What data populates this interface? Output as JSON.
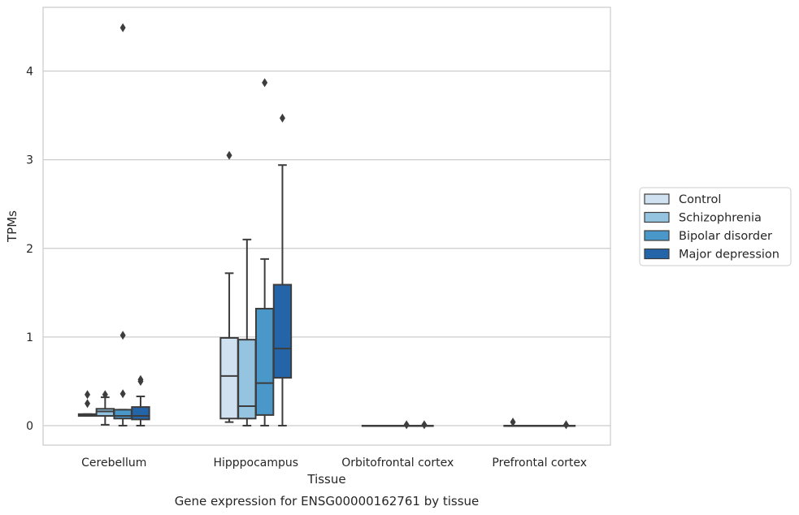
{
  "caption": "Gene expression for ENSG00000162761 by tissue",
  "chart_data": {
    "type": "box",
    "xlabel": "Tissue",
    "ylabel": "TPMs",
    "ylim": [
      -0.22,
      4.72
    ],
    "yticks": [
      0,
      1,
      2,
      3,
      4
    ],
    "grid": "horizontal",
    "legend_position": "right",
    "categories": [
      "Cerebellum",
      "Hipppocampus",
      "Orbitofrontal cortex",
      "Prefrontal cortex"
    ],
    "series": [
      {
        "name": "Control",
        "color": "#d0e1f2",
        "boxes": [
          {
            "category": "Cerebellum",
            "whisker_low": 0.11,
            "q1": 0.11,
            "median": 0.12,
            "q3": 0.13,
            "whisker_high": 0.13,
            "outliers": [
              0.25,
              0.35
            ]
          },
          {
            "category": "Hipppocampus",
            "whisker_low": 0.04,
            "q1": 0.08,
            "median": 0.56,
            "q3": 0.99,
            "whisker_high": 1.72,
            "outliers": [
              3.05
            ]
          },
          {
            "category": "Orbitofrontal cortex",
            "whisker_low": 0.0,
            "q1": 0.0,
            "median": 0.0,
            "q3": 0.0,
            "whisker_high": 0.0,
            "outliers": []
          },
          {
            "category": "Prefrontal cortex",
            "whisker_low": 0.0,
            "q1": 0.0,
            "median": 0.0,
            "q3": 0.0,
            "whisker_high": 0.0,
            "outliers": [
              0.04
            ]
          }
        ]
      },
      {
        "name": "Schizophrenia",
        "color": "#94c4df",
        "boxes": [
          {
            "category": "Cerebellum",
            "whisker_low": 0.01,
            "q1": 0.11,
            "median": 0.16,
            "q3": 0.19,
            "whisker_high": 0.32,
            "outliers": [
              0.35
            ]
          },
          {
            "category": "Hipppocampus",
            "whisker_low": 0.0,
            "q1": 0.08,
            "median": 0.22,
            "q3": 0.97,
            "whisker_high": 2.1,
            "outliers": []
          },
          {
            "category": "Orbitofrontal cortex",
            "whisker_low": 0.0,
            "q1": 0.0,
            "median": 0.0,
            "q3": 0.0,
            "whisker_high": 0.0,
            "outliers": []
          },
          {
            "category": "Prefrontal cortex",
            "whisker_low": 0.0,
            "q1": 0.0,
            "median": 0.0,
            "q3": 0.0,
            "whisker_high": 0.0,
            "outliers": []
          }
        ]
      },
      {
        "name": "Bipolar disorder",
        "color": "#4a98c9",
        "boxes": [
          {
            "category": "Cerebellum",
            "whisker_low": 0.0,
            "q1": 0.08,
            "median": 0.11,
            "q3": 0.18,
            "whisker_high": 0.18,
            "outliers": [
              0.36,
              1.02,
              4.49
            ]
          },
          {
            "category": "Hipppocampus",
            "whisker_low": 0.0,
            "q1": 0.12,
            "median": 0.48,
            "q3": 1.32,
            "whisker_high": 1.88,
            "outliers": [
              3.87
            ]
          },
          {
            "category": "Orbitofrontal cortex",
            "whisker_low": 0.0,
            "q1": 0.0,
            "median": 0.0,
            "q3": 0.0,
            "whisker_high": 0.0,
            "outliers": [
              0.01
            ]
          },
          {
            "category": "Prefrontal cortex",
            "whisker_low": 0.0,
            "q1": 0.0,
            "median": 0.0,
            "q3": 0.0,
            "whisker_high": 0.0,
            "outliers": []
          }
        ]
      },
      {
        "name": "Major depression",
        "color": "#2464a8",
        "boxes": [
          {
            "category": "Cerebellum",
            "whisker_low": 0.0,
            "q1": 0.07,
            "median": 0.11,
            "q3": 0.21,
            "whisker_high": 0.33,
            "outliers": [
              0.5,
              0.52
            ]
          },
          {
            "category": "Hipppocampus",
            "whisker_low": 0.0,
            "q1": 0.54,
            "median": 0.87,
            "q3": 1.59,
            "whisker_high": 2.94,
            "outliers": [
              3.47
            ]
          },
          {
            "category": "Orbitofrontal cortex",
            "whisker_low": 0.0,
            "q1": 0.0,
            "median": 0.0,
            "q3": 0.0,
            "whisker_high": 0.0,
            "outliers": [
              0.01
            ]
          },
          {
            "category": "Prefrontal cortex",
            "whisker_low": 0.0,
            "q1": 0.0,
            "median": 0.0,
            "q3": 0.0,
            "whisker_high": 0.0,
            "outliers": [
              0.01
            ]
          }
        ]
      }
    ]
  }
}
